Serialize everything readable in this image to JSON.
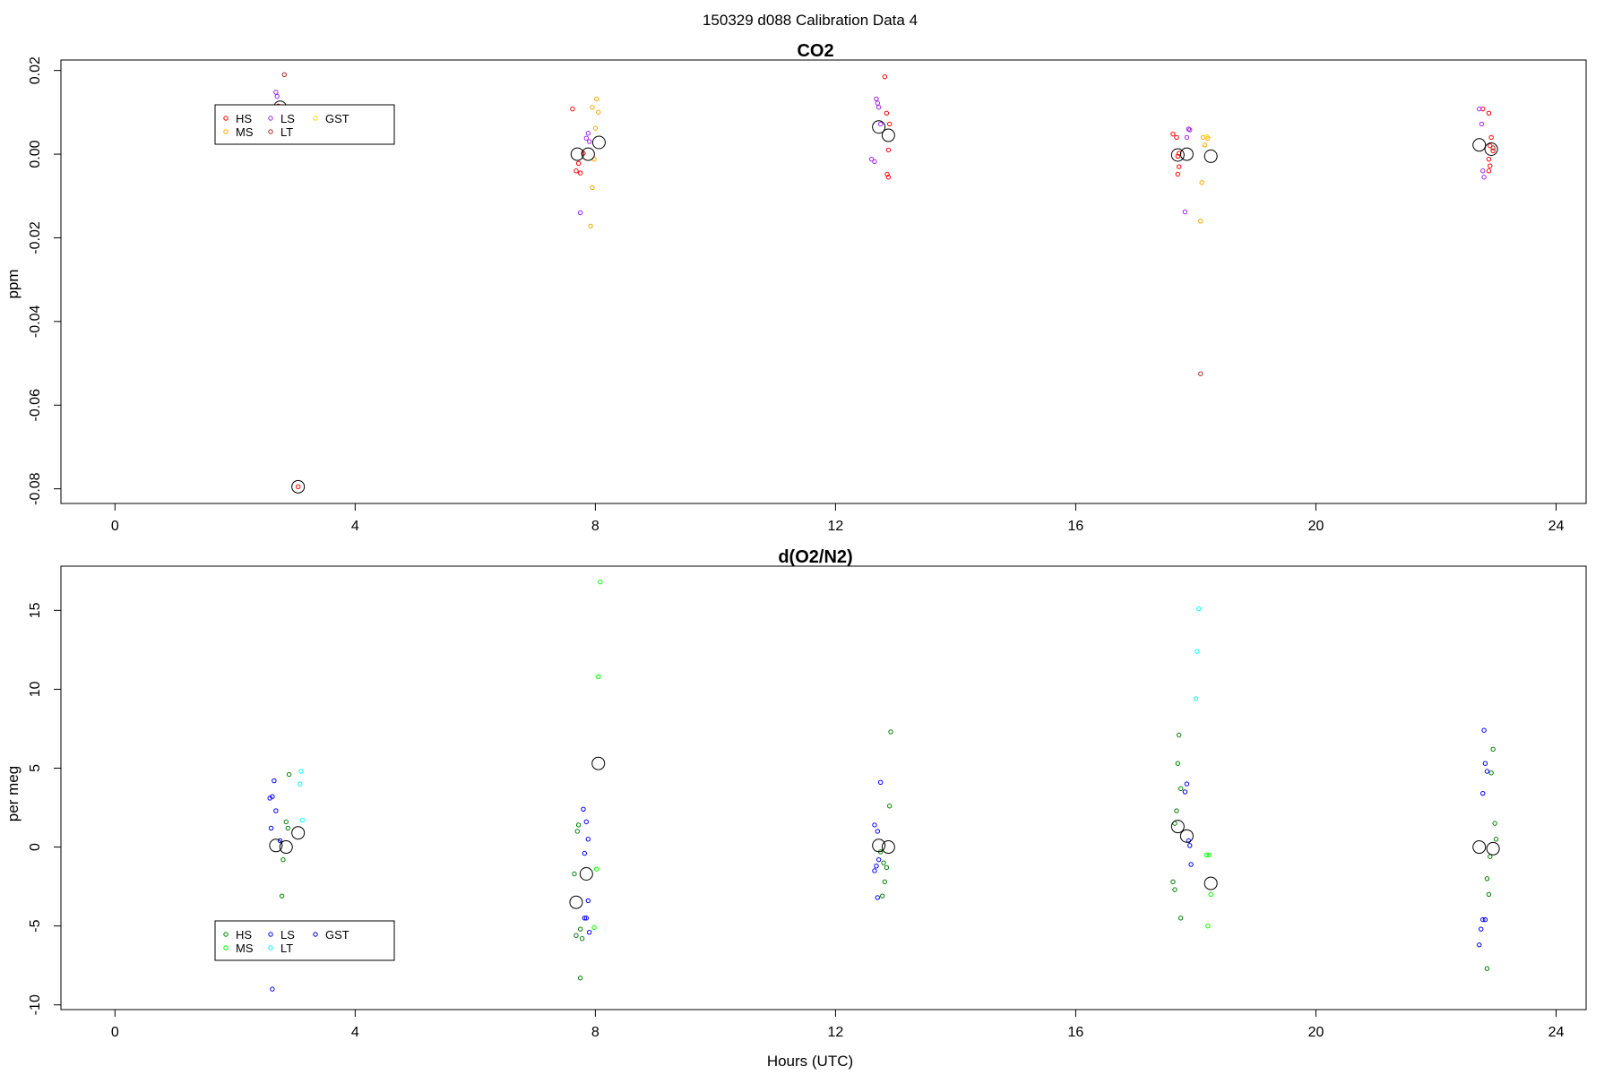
{
  "figure": {
    "title": "150329   d088   Calibration Data 4"
  },
  "chart_data": [
    {
      "type": "scatter",
      "title": "CO2",
      "xlabel": "",
      "ylabel": "ppm",
      "xlim": [
        -0.9,
        24.5
      ],
      "ylim": [
        -0.0835,
        0.0225
      ],
      "xticks": [
        0,
        4,
        8,
        12,
        16,
        20,
        24
      ],
      "xtick_labels": [
        "0",
        "4",
        "8",
        "12",
        "16",
        "20",
        "24"
      ],
      "yticks": [
        -0.08,
        -0.06,
        -0.04,
        -0.02,
        0.0,
        0.02
      ],
      "ytick_labels": [
        "-0.08",
        "-0.06",
        "-0.04",
        "-0.02",
        "0.00",
        "0.02"
      ],
      "legend": {
        "placement": "top-left",
        "entries": [
          {
            "name": "HS",
            "color": "#ff0000"
          },
          {
            "name": "MS",
            "color": "#ffa500"
          },
          {
            "name": "LS",
            "color": "#a020f0"
          },
          {
            "name": "LT",
            "color": "#b22222"
          },
          {
            "name": "GST",
            "color": "#ffd700"
          }
        ]
      },
      "series": [
        {
          "name": "HS",
          "color": "#ff0000",
          "points": [
            [
              2.72,
              0.0115
            ],
            [
              3.05,
              -0.0795
            ],
            [
              7.62,
              0.0108
            ],
            [
              7.68,
              -0.004
            ],
            [
              7.72,
              -0.0022
            ],
            [
              7.75,
              -0.0045
            ],
            [
              7.8,
              0.0002
            ],
            [
              12.82,
              0.0185
            ],
            [
              12.85,
              0.0098
            ],
            [
              12.9,
              0.0072
            ],
            [
              12.88,
              0.001
            ],
            [
              12.86,
              -0.0048
            ],
            [
              12.88,
              -0.0055
            ],
            [
              17.62,
              0.0048
            ],
            [
              17.68,
              0.004
            ],
            [
              17.7,
              -0.0005
            ],
            [
              17.72,
              -0.003
            ],
            [
              17.7,
              -0.0048
            ],
            [
              17.72,
              0.0002
            ],
            [
              22.78,
              0.0108
            ],
            [
              22.88,
              0.0098
            ],
            [
              22.92,
              0.004
            ],
            [
              22.9,
              0.002
            ],
            [
              22.95,
              0.0008
            ],
            [
              22.88,
              -0.0012
            ],
            [
              22.9,
              -0.0028
            ],
            [
              22.88,
              -0.004
            ]
          ]
        },
        {
          "name": "MS",
          "color": "#ffa500",
          "points": [
            [
              7.95,
              0.0112
            ],
            [
              8.02,
              0.0132
            ],
            [
              8.05,
              0.01
            ],
            [
              8.0,
              0.0062
            ],
            [
              7.98,
              -0.0012
            ],
            [
              7.95,
              -0.008
            ],
            [
              7.92,
              -0.0172
            ],
            [
              18.12,
              0.004
            ],
            [
              18.2,
              0.0038
            ],
            [
              18.15,
              0.0022
            ],
            [
              18.1,
              -0.0068
            ],
            [
              18.08,
              -0.016
            ]
          ]
        },
        {
          "name": "LS",
          "color": "#a020f0",
          "points": [
            [
              2.68,
              0.0148
            ],
            [
              2.7,
              0.0138
            ],
            [
              2.75,
              0.0112
            ],
            [
              7.75,
              -0.014
            ],
            [
              7.85,
              0.0038
            ],
            [
              7.88,
              0.005
            ],
            [
              7.9,
              0.003
            ],
            [
              12.68,
              0.0132
            ],
            [
              12.7,
              0.0122
            ],
            [
              12.72,
              0.0112
            ],
            [
              12.6,
              -0.0012
            ],
            [
              12.65,
              -0.0018
            ],
            [
              12.75,
              0.0072
            ],
            [
              17.82,
              -0.0138
            ],
            [
              17.88,
              0.006
            ],
            [
              17.9,
              0.0058
            ],
            [
              17.85,
              0.004
            ],
            [
              22.72,
              0.0108
            ],
            [
              22.76,
              0.0072
            ],
            [
              22.78,
              -0.004
            ],
            [
              22.8,
              -0.0055
            ]
          ]
        },
        {
          "name": "LT",
          "color": "#b22222",
          "points": [
            [
              2.82,
              0.019
            ],
            [
              18.08,
              -0.0525
            ],
            [
              22.95,
              0.0015
            ]
          ]
        },
        {
          "name": "GST",
          "color": "#ffd700",
          "points": [
            [
              18.18,
              0.0042
            ]
          ]
        },
        {
          "name": "",
          "color": "#000000",
          "marker": "large-circle",
          "points": [
            [
              2.75,
              0.0112
            ],
            [
              3.05,
              -0.0795
            ],
            [
              7.7,
              0.0
            ],
            [
              7.88,
              0.0
            ],
            [
              8.06,
              0.0028
            ],
            [
              12.72,
              0.0065
            ],
            [
              12.88,
              0.0045
            ],
            [
              17.7,
              -0.0002
            ],
            [
              17.85,
              0.0
            ],
            [
              18.25,
              -0.0005
            ],
            [
              22.72,
              0.0022
            ],
            [
              22.92,
              0.0012
            ]
          ]
        }
      ]
    },
    {
      "type": "scatter",
      "title": "d(O2/N2)",
      "xlabel": "Hours (UTC)",
      "ylabel": "per meg",
      "xlim": [
        -0.9,
        24.5
      ],
      "ylim": [
        -10.3,
        17.8
      ],
      "xticks": [
        0,
        4,
        8,
        12,
        16,
        20,
        24
      ],
      "xtick_labels": [
        "0",
        "4",
        "8",
        "12",
        "16",
        "20",
        "24"
      ],
      "yticks": [
        -10,
        -5,
        0,
        5,
        10,
        15
      ],
      "ytick_labels": [
        "-10",
        "-5",
        "0",
        "5",
        "10",
        "15"
      ],
      "legend": {
        "placement": "bottom-left",
        "entries": [
          {
            "name": "HS",
            "color": "#008000"
          },
          {
            "name": "MS",
            "color": "#00ff00"
          },
          {
            "name": "LS",
            "color": "#0000ff"
          },
          {
            "name": "LT",
            "color": "#00ffff"
          },
          {
            "name": "GST",
            "color": "#0000cd"
          }
        ]
      },
      "series": [
        {
          "name": "HS",
          "color": "#008000",
          "points": [
            [
              2.9,
              4.6
            ],
            [
              2.85,
              1.6
            ],
            [
              2.88,
              1.2
            ],
            [
              2.8,
              -0.8
            ],
            [
              2.78,
              -3.1
            ],
            [
              7.65,
              -1.7
            ],
            [
              7.72,
              1.4
            ],
            [
              7.7,
              1.0
            ],
            [
              7.75,
              -5.2
            ],
            [
              7.68,
              -5.6
            ],
            [
              7.78,
              -5.8
            ],
            [
              7.75,
              -8.3
            ],
            [
              12.75,
              -0.3
            ],
            [
              12.8,
              -1.0
            ],
            [
              12.85,
              -1.3
            ],
            [
              12.82,
              -2.2
            ],
            [
              12.78,
              -3.1
            ],
            [
              12.9,
              2.6
            ],
            [
              12.92,
              7.3
            ],
            [
              17.72,
              7.1
            ],
            [
              17.7,
              5.3
            ],
            [
              17.75,
              3.7
            ],
            [
              17.68,
              2.3
            ],
            [
              17.65,
              1.5
            ],
            [
              17.62,
              -2.2
            ],
            [
              17.65,
              -2.7
            ],
            [
              17.75,
              -4.5
            ],
            [
              22.9,
              -0.6
            ],
            [
              22.92,
              4.7
            ],
            [
              22.95,
              6.2
            ],
            [
              22.98,
              1.5
            ],
            [
              23.0,
              0.5
            ],
            [
              22.85,
              -2.0
            ],
            [
              22.88,
              -3.0
            ],
            [
              22.85,
              -7.7
            ]
          ]
        },
        {
          "name": "MS",
          "color": "#00ff00",
          "points": [
            [
              8.08,
              16.8
            ],
            [
              8.05,
              10.8
            ],
            [
              8.02,
              -1.4
            ],
            [
              7.98,
              -5.1
            ],
            [
              18.18,
              -0.5
            ],
            [
              18.22,
              -0.5
            ],
            [
              18.25,
              -3.0
            ],
            [
              18.2,
              -5.0
            ]
          ]
        },
        {
          "name": "LS",
          "color": "#0000ff",
          "points": [
            [
              2.65,
              4.2
            ],
            [
              2.62,
              3.2
            ],
            [
              2.58,
              3.1
            ],
            [
              2.68,
              2.3
            ],
            [
              2.6,
              1.2
            ],
            [
              2.75,
              0.4
            ],
            [
              2.62,
              -9.0
            ],
            [
              7.8,
              2.4
            ],
            [
              7.85,
              1.6
            ],
            [
              7.88,
              0.5
            ],
            [
              7.82,
              -0.4
            ],
            [
              7.88,
              -3.4
            ],
            [
              7.82,
              -4.5
            ],
            [
              7.85,
              -4.5
            ],
            [
              7.9,
              -5.4
            ],
            [
              12.75,
              4.1
            ],
            [
              12.65,
              1.4
            ],
            [
              12.7,
              1.0
            ],
            [
              12.72,
              -0.8
            ],
            [
              12.68,
              -1.2
            ],
            [
              12.65,
              -1.5
            ],
            [
              12.7,
              -3.2
            ],
            [
              17.85,
              4.0
            ],
            [
              17.82,
              3.5
            ],
            [
              17.88,
              0.4
            ],
            [
              17.9,
              0.1
            ],
            [
              17.92,
              -1.1
            ],
            [
              22.8,
              7.4
            ],
            [
              22.82,
              5.3
            ],
            [
              22.85,
              4.8
            ],
            [
              22.78,
              3.4
            ],
            [
              22.78,
              -4.6
            ],
            [
              22.82,
              -4.6
            ],
            [
              22.75,
              -5.2
            ],
            [
              22.72,
              -6.2
            ]
          ]
        },
        {
          "name": "LT",
          "color": "#00ffff",
          "points": [
            [
              3.1,
              4.8
            ],
            [
              3.08,
              4.0
            ],
            [
              3.12,
              1.7
            ],
            [
              18.05,
              15.1
            ],
            [
              18.02,
              12.4
            ],
            [
              18.0,
              9.4
            ]
          ]
        },
        {
          "name": "",
          "color": "#000000",
          "marker": "large-circle",
          "points": [
            [
              2.68,
              0.1
            ],
            [
              2.85,
              0.0
            ],
            [
              3.05,
              0.9
            ],
            [
              7.68,
              -3.5
            ],
            [
              7.85,
              -1.7
            ],
            [
              8.05,
              5.3
            ],
            [
              12.72,
              0.1
            ],
            [
              12.88,
              0.0
            ],
            [
              17.7,
              1.3
            ],
            [
              17.85,
              0.7
            ],
            [
              18.25,
              -2.3
            ],
            [
              22.72,
              0.0
            ],
            [
              22.95,
              -0.1
            ]
          ]
        }
      ]
    }
  ]
}
